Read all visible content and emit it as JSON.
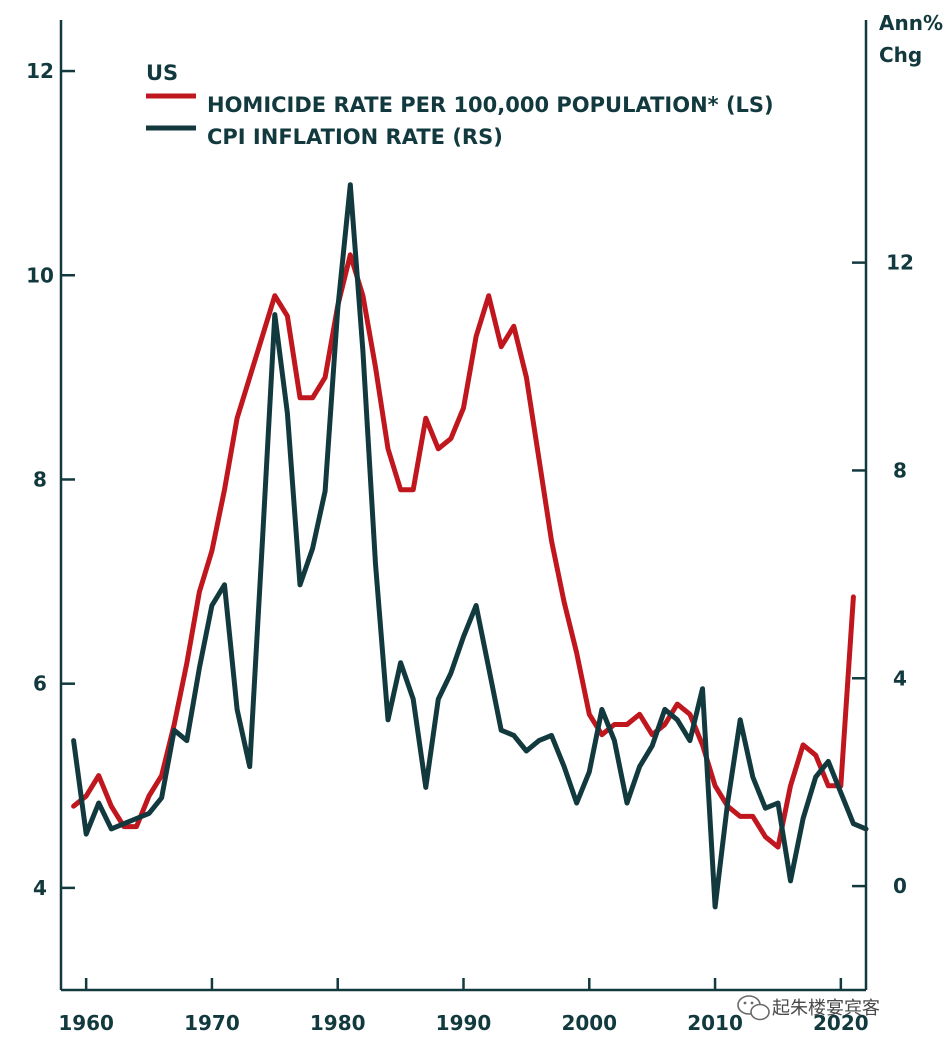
{
  "chart_data": {
    "type": "line",
    "region_label": "US",
    "right_axis_unit": [
      "Ann%",
      "Chg"
    ],
    "x_ticks": [
      1960,
      1970,
      1980,
      1990,
      2000,
      2010,
      2020
    ],
    "xlim": [
      1958,
      2022
    ],
    "left_axis": {
      "ticks": [
        4,
        6,
        8,
        10,
        12
      ],
      "ylim": [
        3,
        12.5
      ]
    },
    "right_axis": {
      "ticks": [
        0,
        4,
        8,
        12
      ],
      "ylim": [
        -2,
        16.67
      ]
    },
    "grid": false,
    "legend_position": "top-left",
    "series": [
      {
        "name": "HOMICIDE RATE PER 100,000 POPULATION* (LS)",
        "axis": "left",
        "color": "#c0171f",
        "x": [
          1959,
          1960,
          1961,
          1962,
          1963,
          1964,
          1965,
          1966,
          1967,
          1968,
          1969,
          1970,
          1971,
          1972,
          1973,
          1974,
          1975,
          1976,
          1977,
          1978,
          1979,
          1980,
          1981,
          1982,
          1983,
          1984,
          1985,
          1986,
          1987,
          1988,
          1989,
          1990,
          1991,
          1992,
          1993,
          1994,
          1995,
          1996,
          1997,
          1998,
          1999,
          2000,
          2001,
          2002,
          2003,
          2004,
          2005,
          2006,
          2007,
          2008,
          2009,
          2010,
          2011,
          2012,
          2013,
          2014,
          2015,
          2016,
          2017,
          2018,
          2019,
          2020,
          2021
        ],
        "values": [
          4.8,
          4.9,
          5.1,
          4.8,
          4.6,
          4.6,
          4.9,
          5.1,
          5.6,
          6.2,
          6.9,
          7.3,
          7.9,
          8.6,
          9.0,
          9.4,
          9.8,
          9.6,
          8.8,
          8.8,
          9.0,
          9.7,
          10.2,
          9.8,
          9.1,
          8.3,
          7.9,
          7.9,
          8.6,
          8.3,
          8.4,
          8.7,
          9.4,
          9.8,
          9.3,
          9.5,
          9.0,
          8.2,
          7.4,
          6.8,
          6.3,
          5.7,
          5.5,
          5.6,
          5.6,
          5.7,
          5.5,
          5.6,
          5.8,
          5.7,
          5.4,
          5.0,
          4.8,
          4.7,
          4.7,
          4.5,
          4.4,
          5.0,
          5.4,
          5.3,
          5.0,
          5.0,
          6.85
        ]
      },
      {
        "name": "CPI INFLATION RATE (RS)",
        "axis": "right",
        "color": "#123a3e",
        "x": [
          1959,
          1960,
          1961,
          1962,
          1963,
          1964,
          1965,
          1966,
          1967,
          1968,
          1969,
          1970,
          1971,
          1972,
          1973,
          1974,
          1975,
          1976,
          1977,
          1978,
          1979,
          1980,
          1981,
          1982,
          1983,
          1984,
          1985,
          1986,
          1987,
          1988,
          1989,
          1990,
          1991,
          1992,
          1993,
          1994,
          1995,
          1996,
          1997,
          1998,
          1999,
          2000,
          2001,
          2002,
          2003,
          2004,
          2005,
          2006,
          2007,
          2008,
          2009,
          2010,
          2011,
          2012,
          2013,
          2014,
          2015,
          2016,
          2017,
          2018,
          2019,
          2020,
          2021,
          2022
        ],
        "values": [
          2.8,
          1.0,
          1.6,
          1.1,
          1.2,
          1.3,
          1.4,
          1.7,
          3.0,
          2.8,
          4.2,
          5.4,
          5.8,
          3.4,
          2.3,
          6.6,
          11.0,
          9.1,
          5.8,
          6.5,
          7.6,
          11.1,
          13.5,
          10.3,
          6.2,
          3.2,
          4.3,
          3.6,
          1.9,
          3.6,
          4.1,
          4.8,
          5.4,
          4.2,
          3.0,
          2.9,
          2.6,
          2.8,
          2.9,
          2.3,
          1.6,
          2.2,
          3.4,
          2.8,
          1.6,
          2.3,
          2.7,
          3.4,
          3.2,
          2.8,
          3.8,
          -0.4,
          1.6,
          3.2,
          2.1,
          1.5,
          1.6,
          0.1,
          1.3,
          2.1,
          2.4,
          1.8,
          1.2,
          1.1
        ]
      }
    ]
  },
  "watermark": "起朱楼宴宾客"
}
